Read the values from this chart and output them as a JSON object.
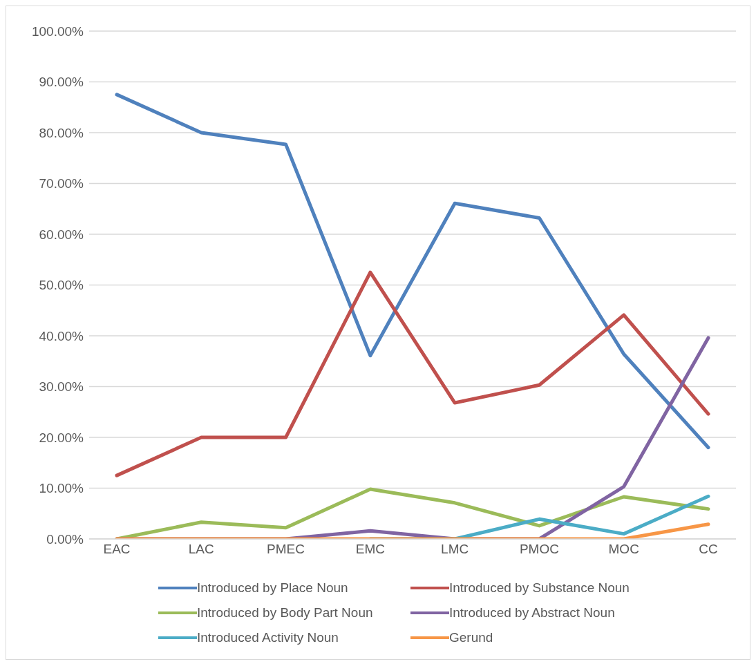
{
  "chart_data": {
    "type": "line",
    "categories": [
      "EAC",
      "LAC",
      "PMEC",
      "EMC",
      "LMC",
      "PMOC",
      "MOC",
      "CC"
    ],
    "series": [
      {
        "name": "Introduced by Place Noun",
        "color": "#4f81bd",
        "values": [
          87.5,
          80,
          77.7,
          36.1,
          66.1,
          63.2,
          36.4,
          18
        ]
      },
      {
        "name": "Introduced by Substance Noun",
        "color": "#c0504d",
        "values": [
          12.5,
          20,
          20,
          52.5,
          26.8,
          30.3,
          44.1,
          24.6
        ]
      },
      {
        "name": "Introduced by Body Part Noun",
        "color": "#9bbb59",
        "values": [
          0,
          3.3,
          2.2,
          9.8,
          7.1,
          2.6,
          8.3,
          5.9
        ]
      },
      {
        "name": "Introduced by Abstract Noun",
        "color": "#8064a2",
        "values": [
          0,
          0,
          0,
          1.6,
          0,
          0,
          10.3,
          39.6
        ]
      },
      {
        "name": "Introduced Activity Noun",
        "color": "#4bacc6",
        "values": [
          null,
          null,
          null,
          0,
          0,
          3.9,
          1,
          8.4
        ]
      },
      {
        "name": "Gerund",
        "color": "#f79646",
        "values": [
          0,
          0,
          0,
          0,
          0,
          0,
          0,
          2.9
        ]
      }
    ],
    "ylim": [
      0,
      100
    ],
    "yticks": [
      {
        "value": 0,
        "label": "0.00%"
      },
      {
        "value": 10,
        "label": "10.00%"
      },
      {
        "value": 20,
        "label": "20.00%"
      },
      {
        "value": 30,
        "label": "30.00%"
      },
      {
        "value": 40,
        "label": "40.00%"
      },
      {
        "value": 50,
        "label": "50.00%"
      },
      {
        "value": 60,
        "label": "60.00%"
      },
      {
        "value": 70,
        "label": "70.00%"
      },
      {
        "value": 80,
        "label": "80.00%"
      },
      {
        "value": 90,
        "label": "90.00%"
      },
      {
        "value": 100,
        "label": "100.00%"
      }
    ],
    "grid": "y",
    "legend": "bottom",
    "marker": "none",
    "line_style": "solid"
  }
}
